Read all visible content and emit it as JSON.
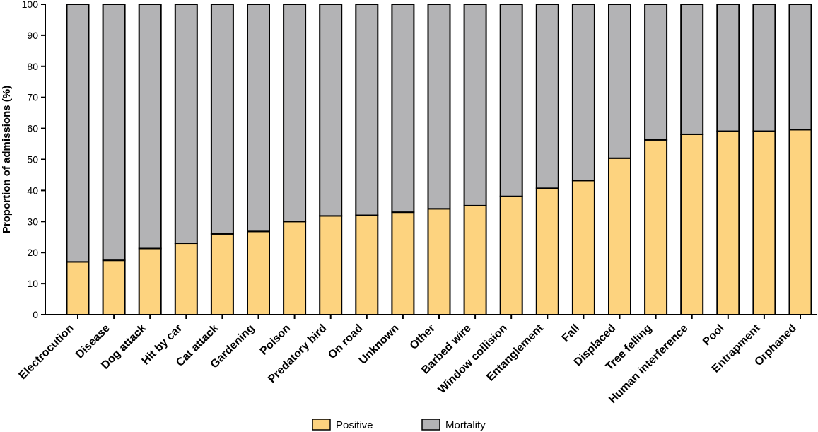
{
  "chart_data": {
    "type": "bar",
    "stacked": true,
    "title": "",
    "xlabel": "",
    "ylabel": "Proportion of admissions (%)",
    "ylim": [
      0,
      100
    ],
    "yticks": [
      "0",
      "10",
      "20",
      "30",
      "40",
      "50",
      "60",
      "70",
      "80",
      "90",
      "100"
    ],
    "grid": false,
    "legend_position": "bottom",
    "categories": [
      "Electrocution",
      "Disease",
      "Dog attack",
      "Hit by car",
      "Cat attack",
      "Gardening",
      "Poison",
      "Predatory bird",
      "On road",
      "Unknown",
      "Other",
      "Barbed wire",
      "Window collision",
      "Entanglement",
      "Fall",
      "Displaced",
      "Tree felling",
      "Human interference",
      "Pool",
      "Entrapment",
      "Orphaned"
    ],
    "series": [
      {
        "name": "Positive",
        "color": "#fdd37f",
        "values": [
          17,
          17.5,
          21.3,
          23,
          26,
          26.8,
          30,
          31.8,
          32,
          33,
          34.1,
          35.1,
          38.1,
          40.7,
          43.2,
          50.4,
          56.3,
          58.1,
          59.1,
          59.1,
          59.6
        ]
      },
      {
        "name": "Mortality",
        "color": "#b3b3b5",
        "values": [
          83,
          82.5,
          78.7,
          77,
          74,
          73.2,
          70,
          68.2,
          68,
          67,
          65.9,
          64.9,
          61.9,
          59.3,
          56.8,
          49.6,
          43.7,
          41.9,
          40.9,
          40.9,
          40.4
        ]
      }
    ]
  }
}
